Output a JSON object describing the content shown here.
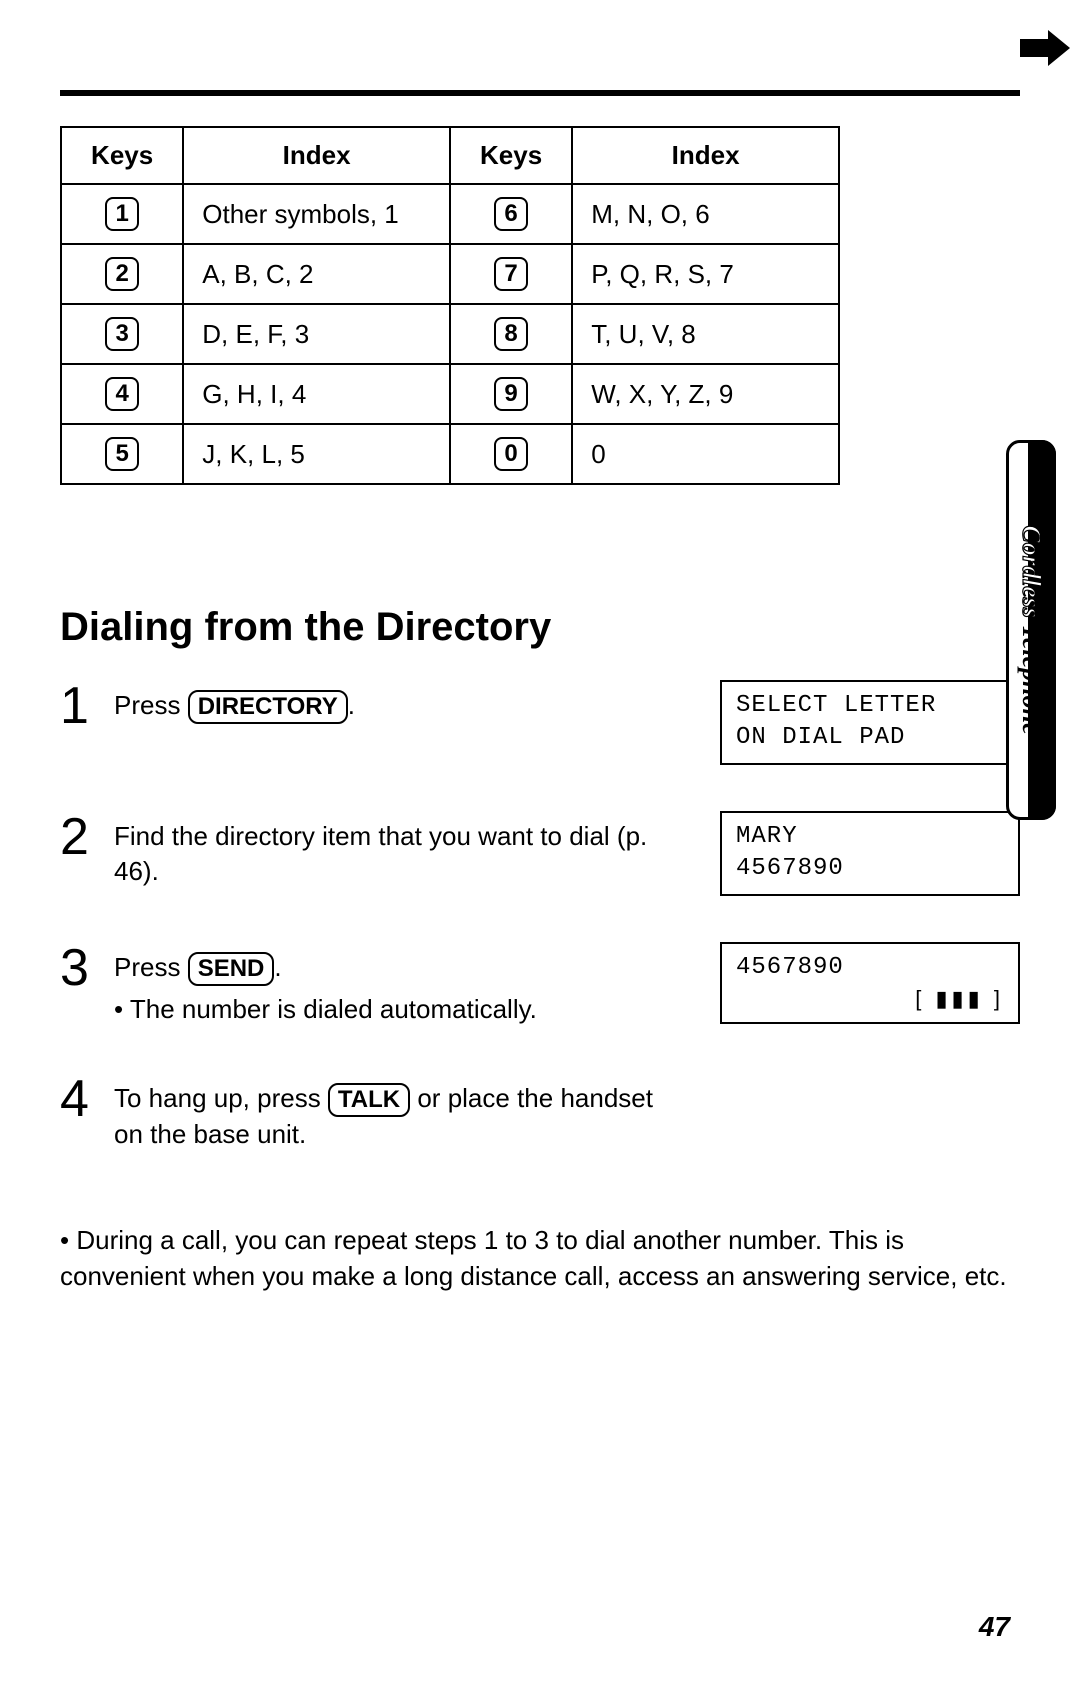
{
  "page_number": "47",
  "side_tab": {
    "word1": "Cordless",
    "word2": "Telephone"
  },
  "table": {
    "headers": [
      "Keys",
      "Index",
      "Keys",
      "Index"
    ],
    "rows": [
      {
        "k1": "1",
        "i1": "Other symbols, 1",
        "k2": "6",
        "i2": "M, N, O, 6"
      },
      {
        "k1": "2",
        "i1": "A, B, C, 2",
        "k2": "7",
        "i2": "P, Q, R, S, 7"
      },
      {
        "k1": "3",
        "i1": "D, E, F, 3",
        "k2": "8",
        "i2": "T, U, V, 8"
      },
      {
        "k1": "4",
        "i1": "G, H, I, 4",
        "k2": "9",
        "i2": "W, X, Y, Z, 9"
      },
      {
        "k1": "5",
        "i1": "J, K, L, 5",
        "k2": "0",
        "i2": "0"
      }
    ]
  },
  "heading": "Dialing from the Directory",
  "steps": [
    {
      "num": "1",
      "prefix": "Press ",
      "button": "DIRECTORY",
      "suffix": ".",
      "bullet": "",
      "display": "SELECT LETTER\nON DIAL PAD",
      "signal": ""
    },
    {
      "num": "2",
      "prefix": "Find the directory item that you want to dial (p. 46).",
      "button": "",
      "suffix": "",
      "bullet": "",
      "display": "MARY\n4567890",
      "signal": ""
    },
    {
      "num": "3",
      "prefix": "Press ",
      "button": "SEND",
      "suffix": ".",
      "bullet": "• The number is dialed automatically.",
      "display": "4567890",
      "signal": "[ ▮▮▮ ]"
    },
    {
      "num": "4",
      "prefix": "To hang up, press ",
      "button": "TALK",
      "suffix": " or place the handset on the base unit.",
      "bullet": "",
      "display": "",
      "signal": ""
    }
  ],
  "note": "• During a call, you can repeat steps 1 to 3 to dial another number. This is convenient when you make a long distance call, access an answering service, etc."
}
